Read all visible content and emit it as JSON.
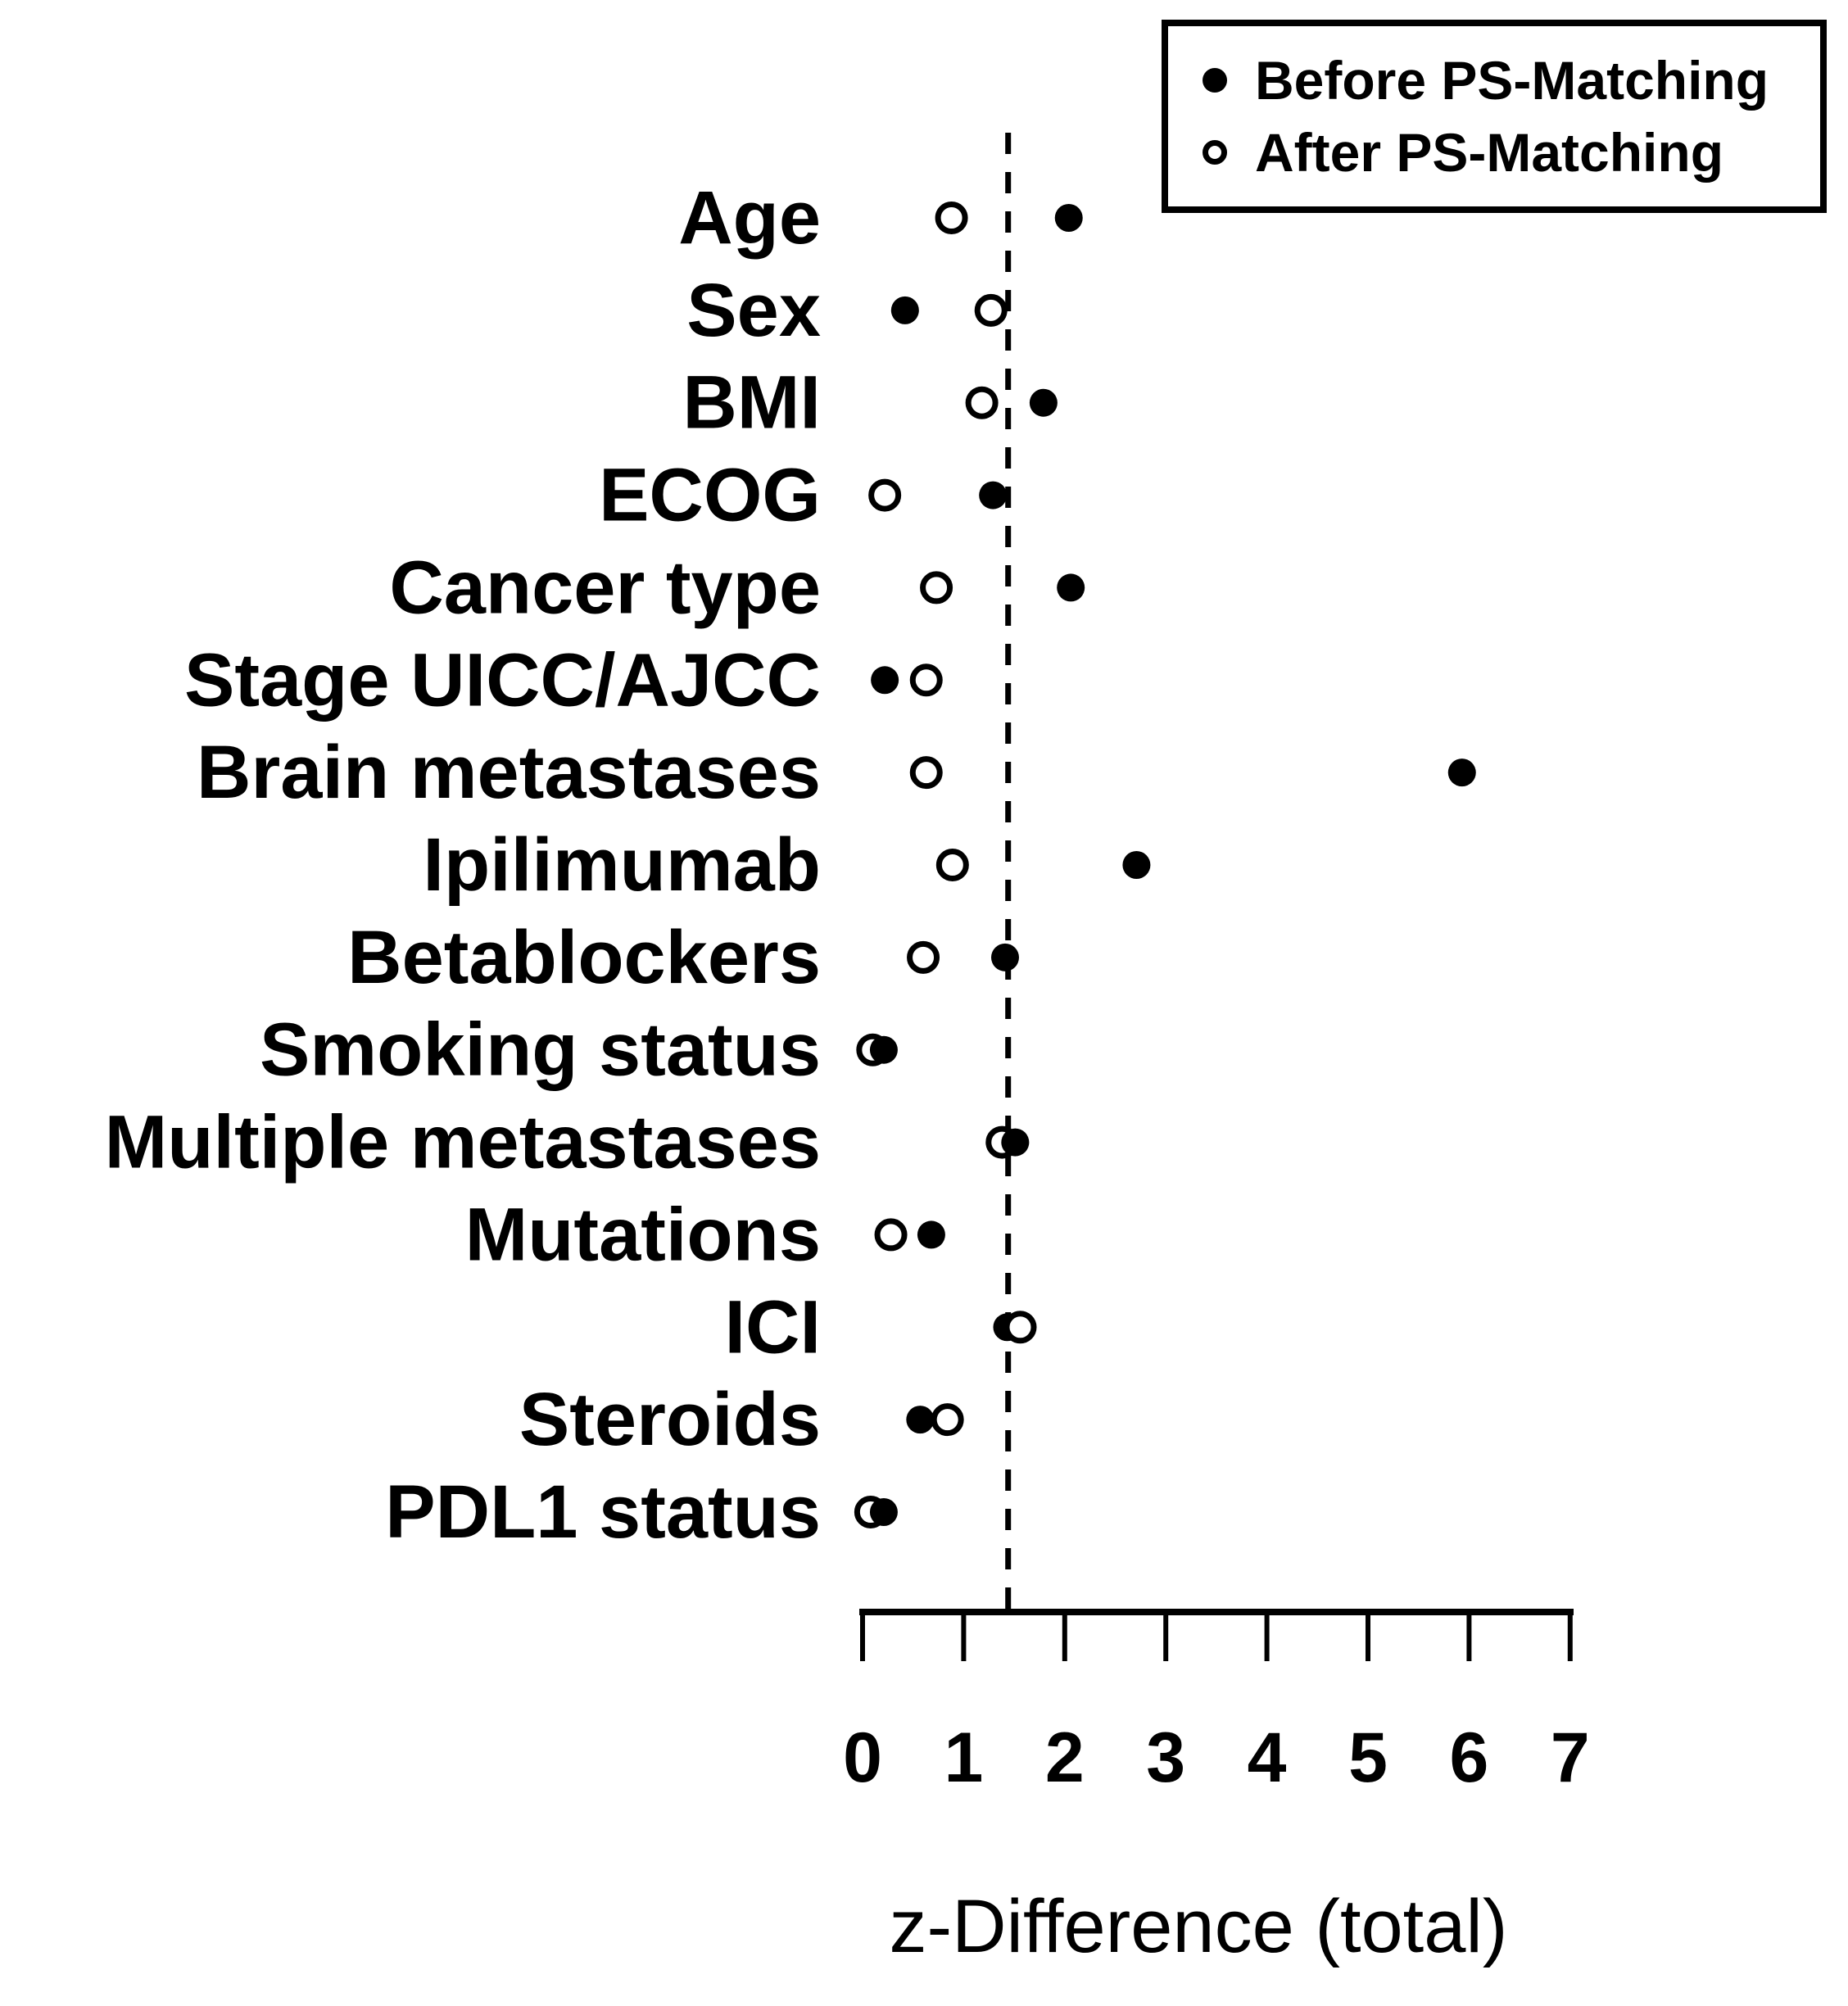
{
  "figure": {
    "background": "#ffffff",
    "ink_color": "#000000"
  },
  "legend": {
    "position": "top-right",
    "border": true,
    "items": [
      {
        "label": "Before PS-Matching",
        "marker": "filled-circle"
      },
      {
        "label": "After PS-Matching",
        "marker": "open-circle"
      }
    ]
  },
  "chart_data": {
    "type": "scatter",
    "subtype": "horizontal-dot-plot",
    "title": "",
    "xlabel": "z-Difference (total)",
    "ylabel": "",
    "xlim": [
      0,
      7
    ],
    "x_ticks": [
      0,
      1,
      2,
      3,
      4,
      5,
      6,
      7
    ],
    "grid": false,
    "legend_position": "top-right",
    "reference_line_x": 1.44,
    "reference_line_style": "dashed",
    "categories": [
      "Age",
      "Sex",
      "BMI",
      "ECOG",
      "Cancer type",
      "Stage UICC/AJCC",
      "Brain metastases",
      "Ipilimumab",
      "Betablockers",
      "Smoking status",
      "Multiple metastases",
      "Mutations",
      "ICI",
      "Steroids",
      "PDL1 status"
    ],
    "series": [
      {
        "name": "Before PS-Matching",
        "marker": "filled-circle",
        "values": [
          2.04,
          0.42,
          1.79,
          1.29,
          2.06,
          0.22,
          5.93,
          2.71,
          1.41,
          0.21,
          1.51,
          0.68,
          1.43,
          0.57,
          0.21
        ]
      },
      {
        "name": "After PS-Matching",
        "marker": "open-circle",
        "values": [
          0.88,
          1.27,
          1.18,
          0.22,
          0.73,
          0.63,
          0.63,
          0.89,
          0.6,
          0.1,
          1.38,
          0.28,
          1.56,
          0.84,
          0.08
        ]
      }
    ]
  }
}
